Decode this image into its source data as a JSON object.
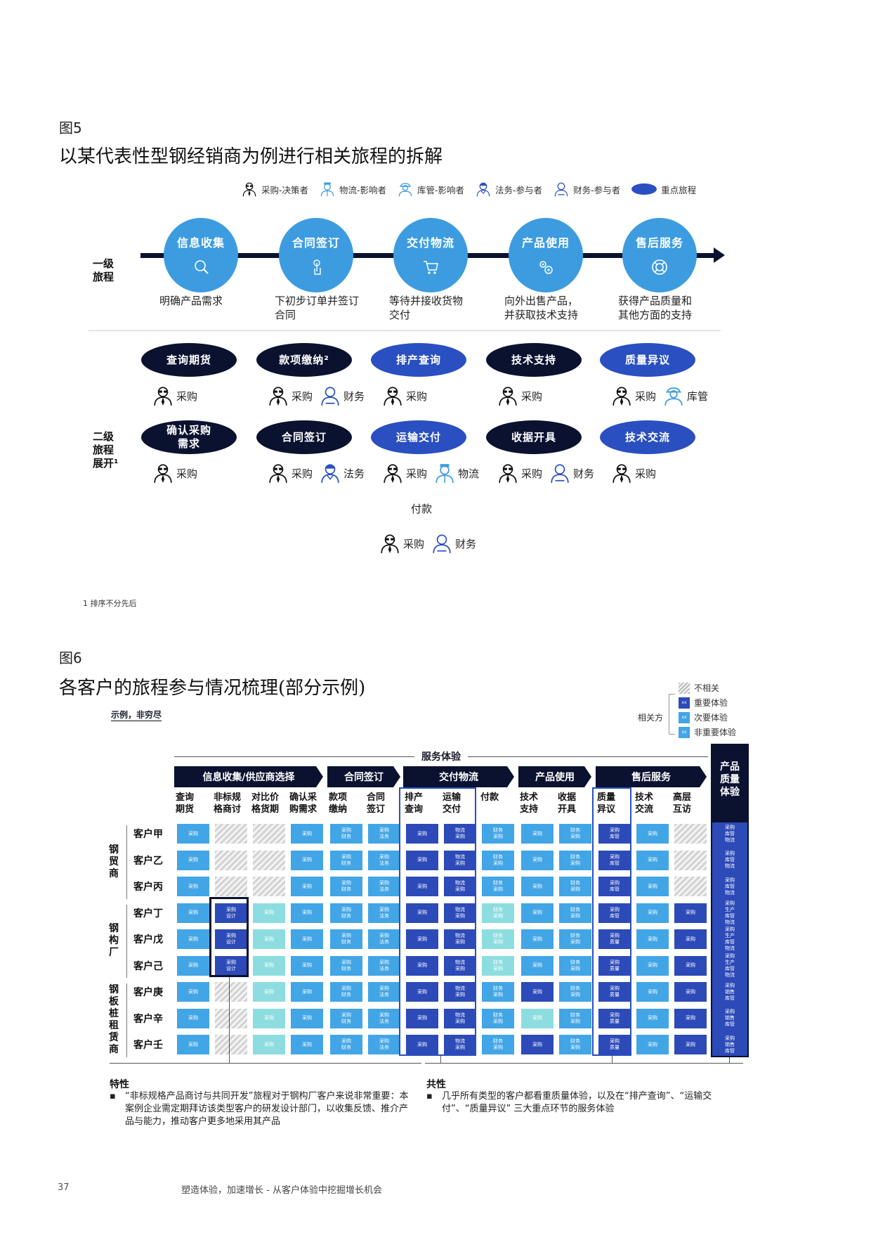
{
  "fig5": {
    "label": "图5",
    "title": "以某代表性型钢经销商为例进行相关旅程的拆解",
    "legend": [
      {
        "icon": "purchasing-icon",
        "label": "采购-决策者"
      },
      {
        "icon": "logistics-icon",
        "label": "物流-影响者"
      },
      {
        "icon": "warehouse-icon",
        "label": "库管-影响者"
      },
      {
        "icon": "legal-icon",
        "label": "法务-参与者"
      },
      {
        "icon": "finance-icon",
        "label": "财务-参与者"
      },
      {
        "icon": "key-journey-icon",
        "label": "重点旅程"
      }
    ],
    "level1_label": "一级\n旅程",
    "level1": [
      {
        "title": "信息收集",
        "icon": "search-icon",
        "desc": "明确产品需求"
      },
      {
        "title": "合同签订",
        "icon": "touch-icon",
        "desc": "下初步订单并签订\n合同"
      },
      {
        "title": "交付物流",
        "icon": "cart-icon",
        "desc": "等待并接收货物\n交付"
      },
      {
        "title": "产品使用",
        "icon": "gears-icon",
        "desc": "向外出售产品，\n并获取技术支持"
      },
      {
        "title": "售后服务",
        "icon": "lifebuoy-icon",
        "desc": "获得产品质量和\n其他方面的支持"
      }
    ],
    "level2_label": "二级\n旅程\n展开¹",
    "level2_row1": [
      {
        "label": "查询期货",
        "style": "dark",
        "roles": [
          "采购"
        ]
      },
      {
        "label": "款项缴纳²",
        "style": "dark",
        "roles": [
          "采购",
          "财务"
        ]
      },
      {
        "label": "排产查询",
        "style": "blue",
        "roles": [
          "采购"
        ]
      },
      {
        "label": "技术支持",
        "style": "dark",
        "roles": [
          "采购"
        ]
      },
      {
        "label": "质量异议",
        "style": "blue",
        "roles": [
          "采购",
          "库管"
        ]
      }
    ],
    "level2_row2": [
      {
        "label": "确认采购\n需求",
        "style": "dark",
        "roles": [
          "采购"
        ]
      },
      {
        "label": "合同签订",
        "style": "dark",
        "roles": [
          "采购",
          "法务"
        ]
      },
      {
        "label": "运输交付",
        "style": "blue",
        "roles": [
          "采购",
          "物流"
        ]
      },
      {
        "label": "收据开具",
        "style": "dark",
        "roles": [
          "采购",
          "财务"
        ]
      },
      {
        "label": "技术交流",
        "style": "blue",
        "roles": [
          "采购"
        ]
      }
    ],
    "payment": {
      "label": "付款",
      "roles": [
        "采购",
        "财务"
      ]
    },
    "footnote": "1 排序不分先后"
  },
  "fig6": {
    "label": "图6",
    "title": "各客户的旅程参与情况梳理(部分示例)",
    "tag": "示例，非穷尽",
    "legend_side": "相关方",
    "legend": [
      {
        "style": "hatch",
        "label": "不相关"
      },
      {
        "style": "dark",
        "label": "重要体验",
        "mark": "xx"
      },
      {
        "style": "light",
        "label": "次要体验",
        "mark": "xx"
      },
      {
        "style": "light",
        "label": "非重要体验",
        "mark": "xx"
      }
    ],
    "service_label": "服务体验",
    "quality_label": "产品\n质量\n体验",
    "stages": [
      "信息收集/供应商选择",
      "合同签订",
      "交付物流",
      "产品使用",
      "售后服务"
    ],
    "columns": [
      "查询\n期货",
      "非标规\n格商讨",
      "对比价\n格货期",
      "确认采\n购需求",
      "款项\n缴纳",
      "合同\n签订",
      "排产\n查询",
      "运输\n交付",
      "付款",
      "技术\n支持",
      "收据\n开具",
      "质量\n异议",
      "技术\n交流",
      "高层\n互访"
    ],
    "groups": [
      {
        "name": "钢\n贸\n商",
        "rows": 3
      },
      {
        "name": "钢\n构\n厂",
        "rows": 3
      },
      {
        "name": "钢\n板\n桩\n租\n赁\n商",
        "rows": 3
      }
    ],
    "rows": [
      {
        "name": "客户甲",
        "cells": [
          [
            "L",
            "采购"
          ],
          [
            "H",
            ""
          ],
          [
            "H",
            ""
          ],
          [
            "L",
            "采购"
          ],
          [
            "L",
            "采购 财务"
          ],
          [
            "L",
            "采购 法务"
          ],
          [
            "D",
            "采购"
          ],
          [
            "D",
            "物流 采购"
          ],
          [
            "L",
            "财务 采购"
          ],
          [
            "L",
            "采购"
          ],
          [
            "L",
            "财务 采购"
          ],
          [
            "D",
            "采购 库管"
          ],
          [
            "L",
            "采购"
          ],
          [
            "H",
            ""
          ],
          [
            "D",
            "采购 库管 物流"
          ]
        ]
      },
      {
        "name": "客户乙",
        "cells": [
          [
            "L",
            "采购"
          ],
          [
            "H",
            ""
          ],
          [
            "H",
            ""
          ],
          [
            "L",
            "采购"
          ],
          [
            "L",
            "采购 财务"
          ],
          [
            "L",
            "采购 法务"
          ],
          [
            "D",
            "采购"
          ],
          [
            "D",
            "物流 采购"
          ],
          [
            "L",
            "财务 采购"
          ],
          [
            "L",
            "采购"
          ],
          [
            "L",
            "财务 采购"
          ],
          [
            "D",
            "采购 库管"
          ],
          [
            "L",
            "采购"
          ],
          [
            "H",
            ""
          ],
          [
            "D",
            "采购 库管 物流"
          ]
        ]
      },
      {
        "name": "客户丙",
        "cells": [
          [
            "L",
            "采购"
          ],
          [
            "H",
            ""
          ],
          [
            "H",
            ""
          ],
          [
            "L",
            "采购"
          ],
          [
            "L",
            "采购 财务"
          ],
          [
            "L",
            "采购 法务"
          ],
          [
            "D",
            "采购"
          ],
          [
            "D",
            "物流 采购"
          ],
          [
            "L",
            "财务 采购"
          ],
          [
            "L",
            "采购"
          ],
          [
            "L",
            "财务 采购"
          ],
          [
            "D",
            "采购 库管"
          ],
          [
            "L",
            "采购"
          ],
          [
            "H",
            ""
          ],
          [
            "D",
            "采购 库管 物流"
          ]
        ]
      },
      {
        "name": "客户丁",
        "cells": [
          [
            "L",
            "采购"
          ],
          [
            "D",
            "采购 设计"
          ],
          [
            "P",
            "采购"
          ],
          [
            "L",
            "采购"
          ],
          [
            "L",
            "采购 财务"
          ],
          [
            "L",
            "采购 法务"
          ],
          [
            "D",
            "采购"
          ],
          [
            "D",
            "物流 采购"
          ],
          [
            "P",
            "财务 采购"
          ],
          [
            "L",
            "采购"
          ],
          [
            "L",
            "财务 采购"
          ],
          [
            "D",
            "采购 库管"
          ],
          [
            "L",
            "采购"
          ],
          [
            "D",
            "采购"
          ],
          [
            "D",
            "采购 生产 库管 物流"
          ]
        ]
      },
      {
        "name": "客户戊",
        "cells": [
          [
            "L",
            "采购"
          ],
          [
            "D",
            "采购 设计"
          ],
          [
            "P",
            "采购"
          ],
          [
            "L",
            "采购"
          ],
          [
            "L",
            "采购 财务"
          ],
          [
            "L",
            "采购 法务"
          ],
          [
            "D",
            "采购"
          ],
          [
            "D",
            "物流 采购"
          ],
          [
            "P",
            "财务 采购"
          ],
          [
            "L",
            "采购"
          ],
          [
            "L",
            "财务 采购"
          ],
          [
            "D",
            "采购 质量"
          ],
          [
            "L",
            "采购"
          ],
          [
            "D",
            "采购"
          ],
          [
            "D",
            "采购 生产 库管 物流"
          ]
        ]
      },
      {
        "name": "客户己",
        "cells": [
          [
            "L",
            "采购"
          ],
          [
            "D",
            "采购 设计"
          ],
          [
            "P",
            "采购"
          ],
          [
            "L",
            "采购"
          ],
          [
            "L",
            "采购 财务"
          ],
          [
            "L",
            "采购 法务"
          ],
          [
            "D",
            "采购"
          ],
          [
            "D",
            "物流 采购"
          ],
          [
            "P",
            "财务 采购"
          ],
          [
            "L",
            "采购"
          ],
          [
            "L",
            "财务 采购"
          ],
          [
            "D",
            "采购 质量"
          ],
          [
            "L",
            "采购"
          ],
          [
            "D",
            "采购"
          ],
          [
            "D",
            "采购 生产 库管 物流"
          ]
        ]
      },
      {
        "name": "客户庚",
        "cells": [
          [
            "L",
            "采购"
          ],
          [
            "H",
            ""
          ],
          [
            "P",
            "采购"
          ],
          [
            "L",
            "采购"
          ],
          [
            "L",
            "采购 财务"
          ],
          [
            "L",
            "采购 法务"
          ],
          [
            "D",
            "采购"
          ],
          [
            "D",
            "物流 采购"
          ],
          [
            "L",
            "财务 采购"
          ],
          [
            "D",
            "采购"
          ],
          [
            "L",
            "财务 采购"
          ],
          [
            "D",
            "采购 质量"
          ],
          [
            "L",
            "采购"
          ],
          [
            "D",
            "采购"
          ],
          [
            "D",
            "采购 销售 库管"
          ]
        ]
      },
      {
        "name": "客户辛",
        "cells": [
          [
            "L",
            "采购"
          ],
          [
            "H",
            ""
          ],
          [
            "P",
            "采购"
          ],
          [
            "L",
            "采购"
          ],
          [
            "L",
            "采购 财务"
          ],
          [
            "L",
            "采购 法务"
          ],
          [
            "D",
            "采购"
          ],
          [
            "D",
            "物流 采购"
          ],
          [
            "L",
            "财务 采购"
          ],
          [
            "P",
            "采购"
          ],
          [
            "L",
            "财务 采购"
          ],
          [
            "D",
            "采购 质量"
          ],
          [
            "L",
            "采购"
          ],
          [
            "D",
            "采购"
          ],
          [
            "D",
            "采购 销售 库管"
          ]
        ]
      },
      {
        "name": "客户壬",
        "cells": [
          [
            "L",
            "采购"
          ],
          [
            "H",
            ""
          ],
          [
            "P",
            "采购"
          ],
          [
            "L",
            "采购"
          ],
          [
            "L",
            "采购 财务"
          ],
          [
            "L",
            "采购 法务"
          ],
          [
            "D",
            "采购"
          ],
          [
            "D",
            "物流 采购"
          ],
          [
            "L",
            "财务 采购"
          ],
          [
            "D",
            "采购"
          ],
          [
            "L",
            "财务 采购"
          ],
          [
            "D",
            "采购 质量"
          ],
          [
            "L",
            "采购"
          ],
          [
            "D",
            "采购"
          ],
          [
            "D",
            "采购 销售 库管"
          ]
        ]
      }
    ],
    "note_left_title": "特性",
    "note_left": "“非标规格产品商讨与共同开发”旅程对于钢构厂客户来说非常重要：本案例企业需定期拜访该类型客户的研发设计部门，以收集反馈、推介产品与能力，推动客户更多地采用其产品",
    "note_right_title": "共性",
    "note_right": "几乎所有类型的客户都看重质量体验，以及在“排产查询”、“运输交付”、“质量异议” 三大重点环节的服务体验"
  },
  "footer": {
    "page": "37",
    "text": "塑造体验，加速增长 - 从客户体验中挖掘增长机会"
  },
  "colors": {
    "dark": "#0b1230",
    "blue": "#2a4fc0",
    "circle": "#3d9ce0",
    "light": "#42a5e6",
    "pale": "#8ddde0"
  }
}
